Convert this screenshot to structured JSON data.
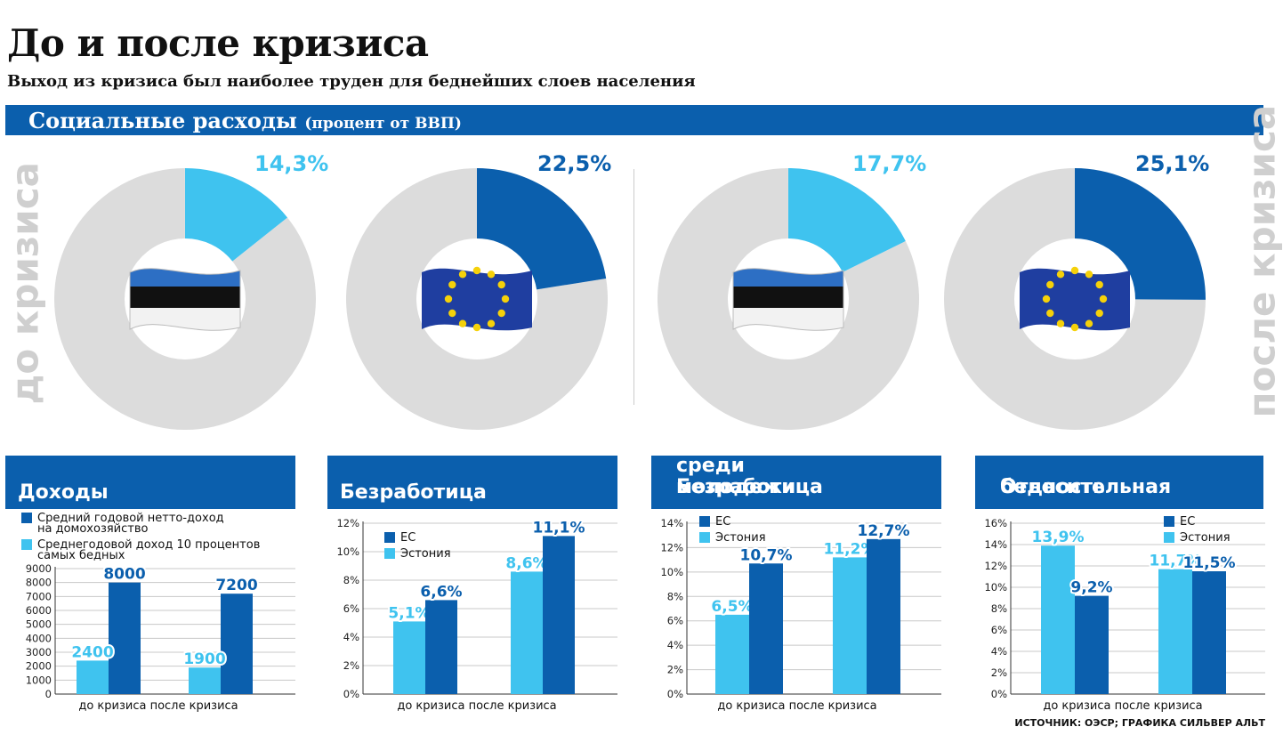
{
  "header": {
    "title": "До и после кризиса",
    "subtitle": "Выход из кризиса был наиболее труден для беднейших слоев населения",
    "section_title": "Социальные расходы",
    "section_unit": "(процент от ВВП)",
    "side_before": "до кризиса",
    "side_after": "после кризиса"
  },
  "colors": {
    "blue": "#0b5fad",
    "light_blue": "#3fc3ef",
    "grey": "#dcdcdc"
  },
  "chart_data": [
    {
      "type": "pie",
      "title": "Социальные расходы (процент от ВВП)",
      "period": "до кризиса",
      "country_icon": "estonia-flag-icon",
      "value": 14.3,
      "label": "14,3%",
      "color": "#3fc3ef"
    },
    {
      "type": "pie",
      "title": "Социальные расходы (процент от ВВП)",
      "period": "до кризиса",
      "country_icon": "eu-flag-icon",
      "value": 22.5,
      "label": "22,5%",
      "color": "#0b5fad"
    },
    {
      "type": "pie",
      "title": "Социальные расходы (процент от ВВП)",
      "period": "после кризиса",
      "country_icon": "estonia-flag-icon",
      "value": 17.7,
      "label": "17,7%",
      "color": "#3fc3ef"
    },
    {
      "type": "pie",
      "title": "Социальные расходы (процент от ВВП)",
      "period": "после кризиса",
      "country_icon": "eu-flag-icon",
      "value": 25.1,
      "label": "25,1%",
      "color": "#0b5fad"
    },
    {
      "type": "bar",
      "title": "Доходы",
      "categories": [
        "до кризиса",
        "после кризиса"
      ],
      "series": [
        {
          "name": "Средний годовой нетто-доход на домохозяйство",
          "legend": [
            "Средний годовой нетто-доход",
            "на домохозяйство"
          ],
          "values": [
            8000,
            7200
          ],
          "labels": [
            "8000",
            "7200"
          ],
          "color": "#0b5fad"
        },
        {
          "name": "Среднегодовой доход 10 процентов самых бедных",
          "legend": [
            "Среднегодовой доход 10 процентов",
            "самых бедных"
          ],
          "values": [
            2400,
            1900
          ],
          "labels": [
            "2400",
            "1900"
          ],
          "color": "#3fc3ef"
        }
      ],
      "ylim": [
        0,
        9000
      ],
      "yticks": [
        0,
        1000,
        2000,
        3000,
        4000,
        5000,
        6000,
        7000,
        8000,
        9000
      ],
      "ytick_labels": [
        "0",
        "1000",
        "2000",
        "3000",
        "4000",
        "5000",
        "6000",
        "7000",
        "8000",
        "9000"
      ]
    },
    {
      "type": "bar",
      "title": "Безработица",
      "categories": [
        "до кризиса",
        "после кризиса"
      ],
      "series": [
        {
          "name": "Эстония",
          "values": [
            5.1,
            8.6
          ],
          "labels": [
            "5,1%",
            "8,6%"
          ],
          "color": "#3fc3ef"
        },
        {
          "name": "ЕС",
          "values": [
            6.6,
            11.1
          ],
          "labels": [
            "6,6%",
            "11,1%"
          ],
          "color": "#0b5fad"
        }
      ],
      "ylim": [
        0,
        12
      ],
      "yticks": [
        0,
        2,
        4,
        6,
        8,
        10,
        12
      ],
      "ytick_labels": [
        "0%",
        "2%",
        "4%",
        "6%",
        "8%",
        "10%",
        "12%"
      ]
    },
    {
      "type": "bar",
      "title": "Безработица среди молодежи",
      "categories": [
        "до кризиса",
        "после кризиса"
      ],
      "series": [
        {
          "name": "Эстония",
          "values": [
            6.5,
            11.2
          ],
          "labels": [
            "6,5%",
            "11,2%"
          ],
          "color": "#3fc3ef"
        },
        {
          "name": "ЕС",
          "values": [
            10.7,
            12.7
          ],
          "labels": [
            "10,7%",
            "12,7%"
          ],
          "color": "#0b5fad"
        }
      ],
      "ylim": [
        0,
        14
      ],
      "yticks": [
        0,
        2,
        4,
        6,
        8,
        10,
        12,
        14
      ],
      "ytick_labels": [
        "0%",
        "2%",
        "4%",
        "6%",
        "8%",
        "10%",
        "12%",
        "14%"
      ]
    },
    {
      "type": "bar",
      "title": "Относительная бедность",
      "categories": [
        "до кризиса",
        "после кризиса"
      ],
      "series": [
        {
          "name": "Эстония",
          "values": [
            13.9,
            11.7
          ],
          "labels": [
            "13,9%",
            "11,7%"
          ],
          "color": "#3fc3ef"
        },
        {
          "name": "ЕС",
          "values": [
            9.2,
            11.5
          ],
          "labels": [
            "9,2%",
            "11,5%"
          ],
          "color": "#0b5fad"
        }
      ],
      "ylim": [
        0,
        16
      ],
      "yticks": [
        0,
        2,
        4,
        6,
        8,
        10,
        12,
        14,
        16
      ],
      "ytick_labels": [
        "0%",
        "2%",
        "4%",
        "6%",
        "8%",
        "10%",
        "12%",
        "14%",
        "16%"
      ]
    }
  ],
  "panels": [
    {
      "title_lines": [
        "Доходы"
      ]
    },
    {
      "title_lines": [
        "Безработица"
      ]
    },
    {
      "title_lines": [
        "Безработица",
        "среди молодежи"
      ]
    },
    {
      "title_lines": [
        "Относительная",
        "бедность"
      ]
    }
  ],
  "footer": {
    "source": "ИСТОЧНИК: ОЭСР; ГРАФИКА СИЛЬВЕР АЛЬТ"
  }
}
